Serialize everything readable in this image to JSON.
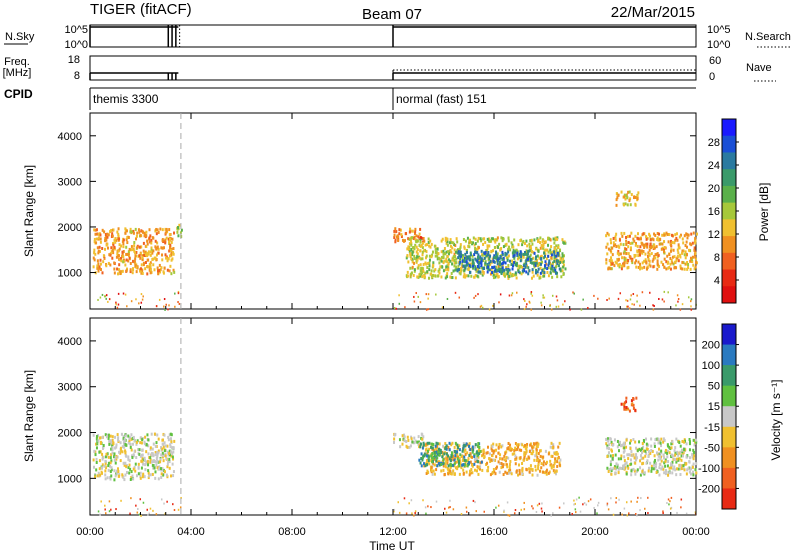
{
  "header": {
    "title_left": "TIGER (fitACF)",
    "title_center": "Beam 07",
    "title_right": "22/Mar/2015"
  },
  "top_panels": {
    "nsky_label": "N.Sky",
    "nsky_ticks": [
      "10^5",
      "10^0"
    ],
    "nsearch_label": "N.Search",
    "nsearch_ticks": [
      "10^5",
      "10^0"
    ],
    "freq_label_line1": "Freq.",
    "freq_label_line2": "[MHz]",
    "freq_ticks": [
      "18",
      "8"
    ],
    "nave_label": "Nave",
    "nave_ticks": [
      "60",
      "0"
    ],
    "cpid_label": "CPID",
    "cpid_segments": [
      {
        "text": "themis 3300",
        "start_hour": 0,
        "end_hour": 3.5
      },
      {
        "text": "normal (fast) 151",
        "start_hour": 12,
        "end_hour": 24
      }
    ]
  },
  "x_axis": {
    "label": "Time UT",
    "ticks": [
      "00:00",
      "04:00",
      "08:00",
      "12:00",
      "16:00",
      "20:00",
      "00:00"
    ],
    "range_hours": [
      0,
      24
    ]
  },
  "chart_data": [
    {
      "type": "heatmap",
      "panel": "power",
      "ylabel": "Slant Range [km]",
      "yticks": [
        "4000",
        "3000",
        "2000",
        "1000"
      ],
      "ylim": [
        200,
        4500
      ],
      "colorbar": {
        "label": "Power [dB]",
        "ticks": [
          "28",
          "24",
          "20",
          "16",
          "12",
          "8",
          "4"
        ],
        "range": [
          0,
          30
        ],
        "colors": [
          "#1a1aff",
          "#1a4fd6",
          "#2a7aa0",
          "#3a9a6a",
          "#5ab04a",
          "#a6c83a",
          "#f0c030",
          "#f09020",
          "#f06020",
          "#e82a14",
          "#e01010"
        ]
      },
      "regions": [
        {
          "start_hour": 0.1,
          "end_hour": 3.3,
          "range_min": 1000,
          "range_max": 2000,
          "value": 10
        },
        {
          "start_hour": 3.4,
          "end_hour": 3.6,
          "range_min": 1700,
          "range_max": 2100,
          "value": 16
        },
        {
          "start_hour": 12.0,
          "end_hour": 13.2,
          "range_min": 1700,
          "range_max": 2000,
          "value": 8
        },
        {
          "start_hour": 12.5,
          "end_hour": 18.8,
          "range_min": 900,
          "range_max": 1800,
          "value": 14
        },
        {
          "start_hour": 14.5,
          "end_hour": 18.6,
          "range_min": 1000,
          "range_max": 1500,
          "value": 24
        },
        {
          "start_hour": 20.4,
          "end_hour": 24.0,
          "range_min": 1100,
          "range_max": 1900,
          "value": 10
        },
        {
          "start_hour": 20.8,
          "end_hour": 21.7,
          "range_min": 2500,
          "range_max": 2800,
          "value": 12
        }
      ]
    },
    {
      "type": "heatmap",
      "panel": "velocity",
      "ylabel": "Slant Range [km]",
      "yticks": [
        "4000",
        "3000",
        "2000",
        "1000"
      ],
      "ylim": [
        200,
        4500
      ],
      "colorbar": {
        "label": "Velocity [m s⁻¹]",
        "ticks": [
          "200",
          "100",
          "50",
          "15",
          "-15",
          "-50",
          "-100",
          "-200"
        ],
        "range": [
          -250,
          250
        ],
        "colors": [
          "#1a1acc",
          "#2a7ac0",
          "#3a9a6a",
          "#60c040",
          "#c8c8c8",
          "#f0c030",
          "#f09020",
          "#f06020",
          "#e82a14"
        ]
      },
      "regions": [
        {
          "start_hour": 0.1,
          "end_hour": 3.3,
          "range_min": 1000,
          "range_max": 2000,
          "value": -5
        },
        {
          "start_hour": 12.0,
          "end_hour": 13.2,
          "range_min": 1700,
          "range_max": 2000,
          "value": -10
        },
        {
          "start_hour": 13.2,
          "end_hour": 18.6,
          "range_min": 1100,
          "range_max": 1800,
          "value": -80
        },
        {
          "start_hour": 13.0,
          "end_hour": 15.5,
          "range_min": 1300,
          "range_max": 1800,
          "value": 120
        },
        {
          "start_hour": 20.4,
          "end_hour": 24.0,
          "range_min": 1100,
          "range_max": 1900,
          "value": 0
        },
        {
          "start_hour": 21.0,
          "end_hour": 21.6,
          "range_min": 2500,
          "range_max": 2800,
          "value": -180
        }
      ]
    }
  ]
}
